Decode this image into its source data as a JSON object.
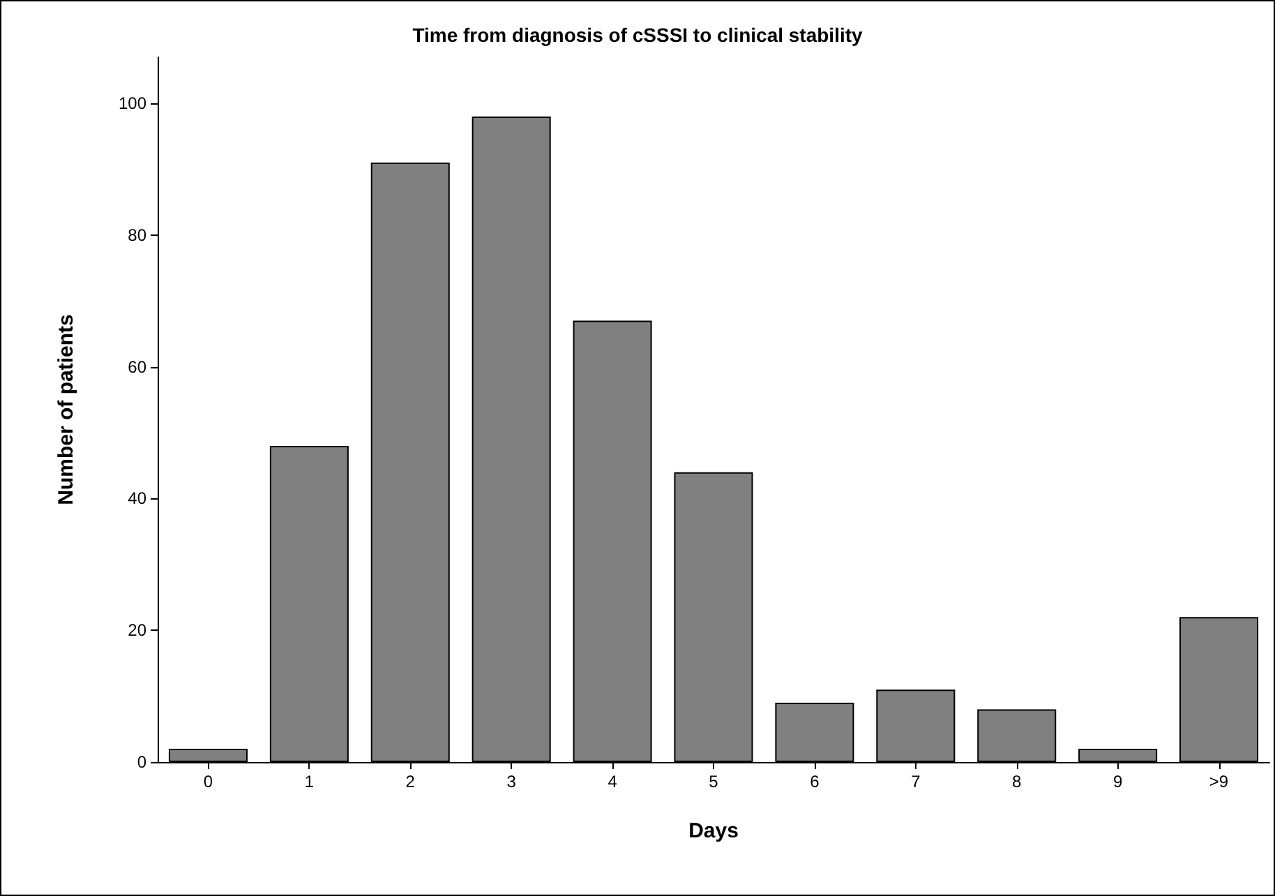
{
  "chart_data": {
    "type": "bar",
    "title": "Time from diagnosis of cSSSI to clinical stability",
    "xlabel": "Days",
    "ylabel": "Number of patients",
    "categories": [
      "0",
      "1",
      "2",
      "3",
      "4",
      "5",
      "6",
      "7",
      "8",
      "9",
      ">9"
    ],
    "values": [
      2,
      48,
      91,
      98,
      67,
      44,
      9,
      11,
      8,
      2,
      22
    ],
    "color": "#808080",
    "ylim": [
      0,
      107
    ],
    "yticks": [
      0,
      20,
      40,
      60,
      80,
      100
    ],
    "grid": false
  }
}
